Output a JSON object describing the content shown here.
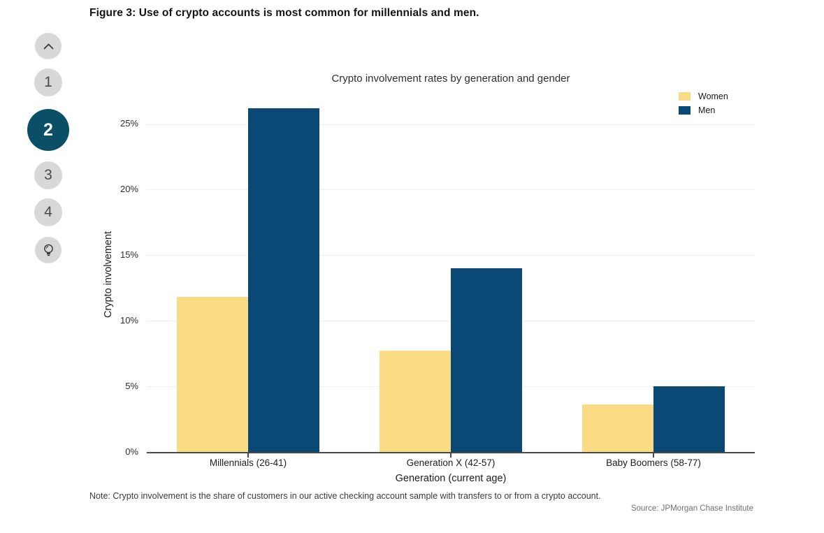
{
  "figure": {
    "title": "Figure 3: Use of crypto accounts is most common for millennials and men."
  },
  "sidebar": {
    "active_color": "#0A4F66",
    "inactive_color": "#D8D8D8",
    "items": [
      {
        "id": "scroll-up",
        "icon": "chevron-up-icon",
        "active": false
      },
      {
        "id": "section-1",
        "label": "1",
        "active": false
      },
      {
        "id": "section-2",
        "label": "2",
        "active": true
      },
      {
        "id": "section-3",
        "label": "3",
        "active": false
      },
      {
        "id": "section-4",
        "label": "4",
        "active": false
      },
      {
        "id": "takeaways",
        "icon": "lightbulb-icon",
        "active": false
      }
    ]
  },
  "chart_data": {
    "type": "bar",
    "title": "Crypto involvement rates by generation and gender",
    "categories": [
      "Millennials (26-41)",
      "Generation X (42-57)",
      "Baby Boomers (58-77)"
    ],
    "series": [
      {
        "name": "Women",
        "color": "#FBDC85",
        "values": [
          11.8,
          7.7,
          3.6
        ]
      },
      {
        "name": "Men",
        "color": "#0A4876",
        "values": [
          26.2,
          14.0,
          5.0
        ]
      }
    ],
    "xlabel": "Generation (current age)",
    "ylabel": "Crypto involvement",
    "yticks": [
      0,
      5,
      10,
      15,
      20,
      25
    ],
    "ytick_labels": [
      "0%",
      "5%",
      "10%",
      "15%",
      "20%",
      "25%"
    ],
    "ylim": [
      0,
      27
    ],
    "grid": true,
    "legend_position": "top-right"
  },
  "footnote": {
    "note": "Note: Crypto involvement is the share of customers in our active checking account sample with transfers to or from a crypto account.",
    "source": "Source: JPMorgan Chase Institute"
  }
}
